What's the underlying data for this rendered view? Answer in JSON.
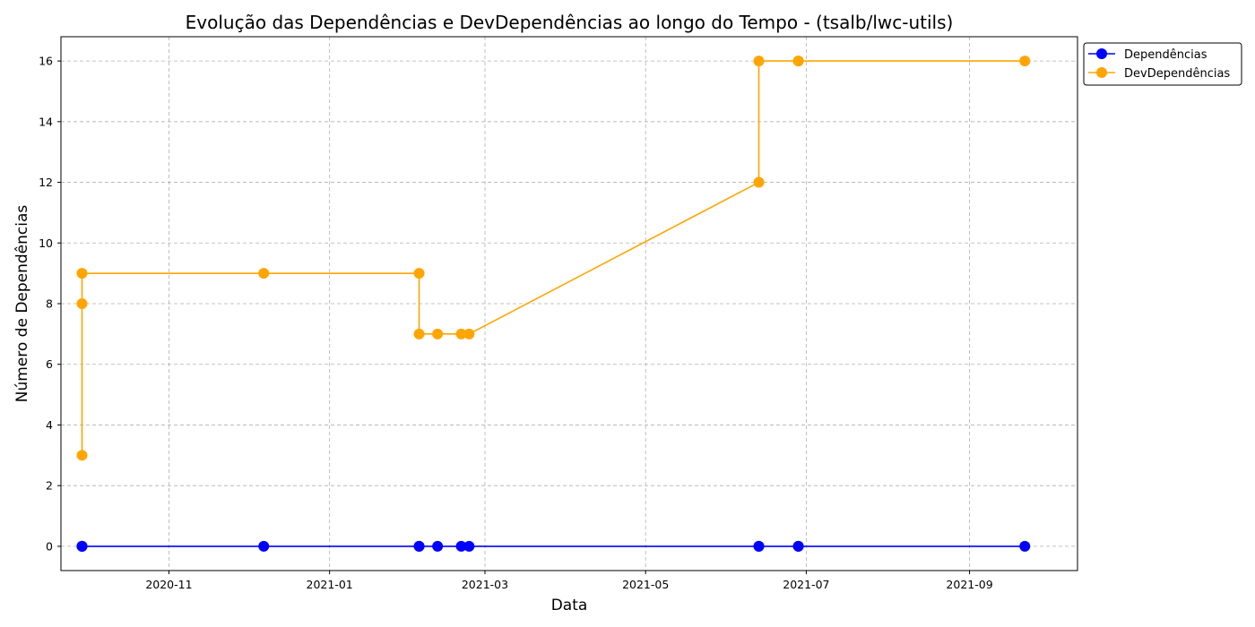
{
  "chart_data": {
    "type": "line",
    "title": "Evolução das Dependências e DevDependências ao longo do Tempo - (tsalb/lwc-utils)",
    "xlabel": "Data",
    "ylabel": "Número de Dependências",
    "x_ticks": [
      "2020-11",
      "2021-01",
      "2021-03",
      "2021-05",
      "2021-07",
      "2021-09"
    ],
    "y_ticks": [
      "0",
      "2",
      "4",
      "6",
      "8",
      "10",
      "12",
      "14",
      "16"
    ],
    "xlim": [
      "2020-09-21",
      "2021-10-12"
    ],
    "ylim": [
      -0.8,
      16.8
    ],
    "grid": true,
    "legend_position": "outside-top-right",
    "x": [
      "2020-09-29",
      "2020-09-29",
      "2020-09-29",
      "2020-12-07",
      "2021-02-04",
      "2021-02-04",
      "2021-02-11",
      "2021-02-20",
      "2021-02-23",
      "2021-06-13",
      "2021-06-13",
      "2021-06-28",
      "2021-06-28",
      "2021-09-22"
    ],
    "series": [
      {
        "name": "Dependências",
        "color": "#0000ff",
        "values": [
          0,
          0,
          0,
          0,
          0,
          0,
          0,
          0,
          0,
          0,
          0,
          0,
          0,
          0
        ]
      },
      {
        "name": "DevDependências",
        "color": "#ffa500",
        "values": [
          3,
          8,
          9,
          9,
          9,
          7,
          7,
          7,
          7,
          12,
          16,
          16,
          16,
          16
        ]
      }
    ]
  }
}
